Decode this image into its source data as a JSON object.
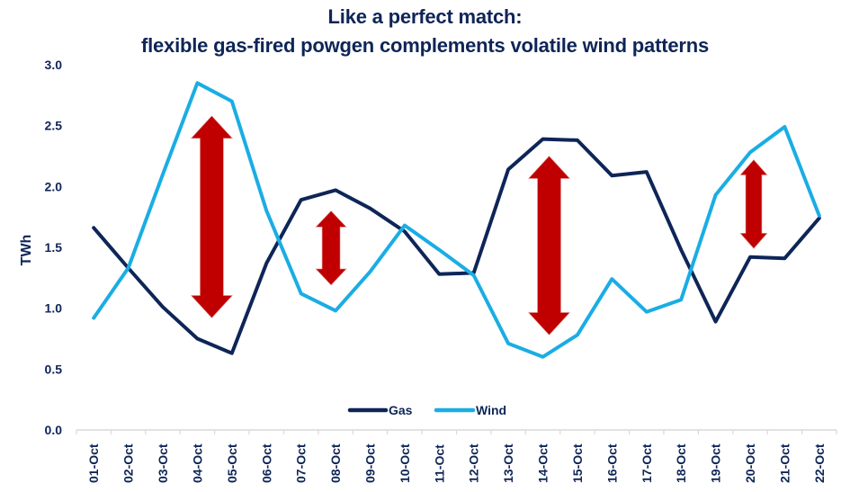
{
  "title": {
    "line1": "Like a perfect match:",
    "line2": "flexible gas-fired powgen complements volatile wind patterns"
  },
  "colors": {
    "gas": "#0E2557",
    "wind": "#1AADE4",
    "arrow": "#C00000",
    "axis": "#D9D9D9",
    "text": "#0E2557"
  },
  "legend": [
    {
      "name": "Gas",
      "color": "#0E2557"
    },
    {
      "name": "Wind",
      "color": "#1AADE4"
    }
  ],
  "chart_data": {
    "type": "line",
    "title": "Like a perfect match: flexible gas-fired powgen complements volatile wind patterns",
    "xlabel": "",
    "ylabel": "TWh",
    "ylim": [
      0,
      3.0
    ],
    "yticks": [
      "0.0",
      "0.5",
      "1.0",
      "1.5",
      "2.0",
      "2.5",
      "3.0"
    ],
    "grid": false,
    "legend_position": "bottom-center inside plot",
    "categories": [
      "01-Oct",
      "02-Oct",
      "03-Oct",
      "04-Oct",
      "05-Oct",
      "06-Oct",
      "07-Oct",
      "08-Oct",
      "09-Oct",
      "10-Oct",
      "11-Oct",
      "12-Oct",
      "13-Oct",
      "14-Oct",
      "15-Oct",
      "16-Oct",
      "17-Oct",
      "18-Oct",
      "19-Oct",
      "20-Oct",
      "21-Oct",
      "22-Oct"
    ],
    "series": [
      {
        "name": "Gas",
        "values": [
          1.66,
          1.33,
          1.01,
          0.75,
          0.63,
          1.37,
          1.89,
          1.97,
          1.82,
          1.63,
          1.28,
          1.29,
          2.14,
          2.39,
          2.38,
          2.09,
          2.12,
          1.48,
          0.89,
          1.42,
          1.41,
          1.74
        ]
      },
      {
        "name": "Wind",
        "values": [
          0.92,
          1.33,
          2.1,
          2.85,
          2.7,
          1.8,
          1.12,
          0.98,
          1.3,
          1.68,
          1.48,
          1.27,
          0.71,
          0.6,
          0.78,
          1.24,
          0.97,
          1.07,
          1.93,
          2.28,
          2.49,
          1.76
        ]
      }
    ],
    "annotations": [
      {
        "type": "double-arrow",
        "x_category": "04-Oct",
        "from": 2.58,
        "to": 0.92
      },
      {
        "type": "double-arrow",
        "x_category": "08-Oct",
        "from": 1.8,
        "to": 1.19
      },
      {
        "type": "double-arrow",
        "x_category": "14-Oct",
        "from": 2.25,
        "to": 0.78
      },
      {
        "type": "double-arrow",
        "x_category": "20-Oct",
        "from": 2.22,
        "to": 1.49
      }
    ]
  }
}
